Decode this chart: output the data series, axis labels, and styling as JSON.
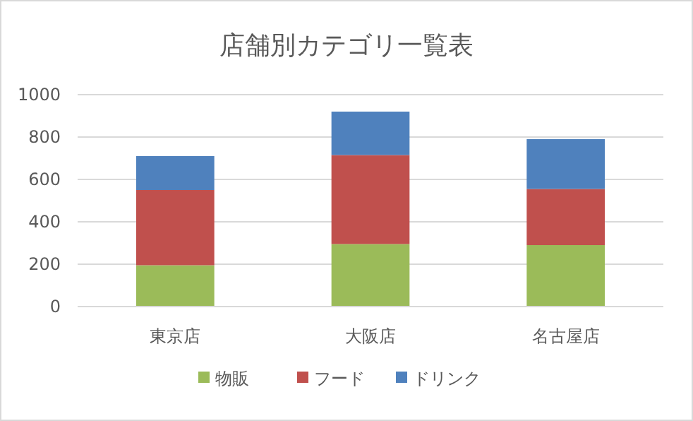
{
  "chart_data": {
    "type": "bar",
    "title": "店舗別カテゴリ一覧表",
    "categories": [
      "東京店",
      "大阪店",
      "名古屋店"
    ],
    "stacked": true,
    "series": [
      {
        "name": "物販",
        "color": "#9bbb59",
        "values": [
          195,
          295,
          290
        ]
      },
      {
        "name": "フード",
        "color": "#c0504d",
        "values": [
          355,
          420,
          265
        ]
      },
      {
        "name": "ドリンク",
        "color": "#4f81bd",
        "values": [
          160,
          205,
          235
        ]
      }
    ],
    "ylim": [
      0,
      1000
    ],
    "yticks": [
      0,
      200,
      400,
      600,
      800,
      1000
    ],
    "grid": "y",
    "legend": "bottom"
  }
}
